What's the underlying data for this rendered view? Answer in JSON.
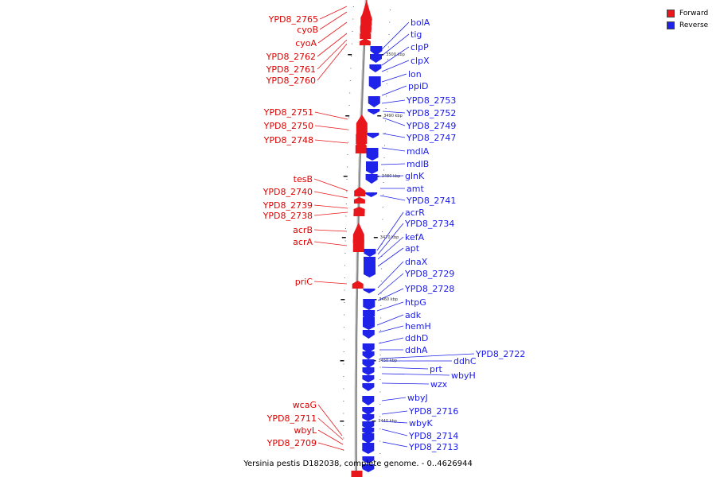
{
  "caption": "Yersinia pestis D182038, complete genome. - 0..4626944",
  "colors": {
    "forward": "#e8171b",
    "reverse": "#1f22e8",
    "backbone": "#888888"
  },
  "legend": [
    {
      "label": "Forward",
      "color": "#e8171b"
    },
    {
      "label": "Reverse",
      "color": "#1f22e8"
    }
  ],
  "ticks": [
    "3500 kbp",
    "3490 kbp",
    "3480 kbp",
    "3470 kbp",
    "3460 kbp",
    "3450 kbp",
    "3440 kbp"
  ],
  "forward_genes": [
    "YPD8_2765",
    "cyoB",
    "cyoA",
    "YPD8_2762",
    "YPD8_2761",
    "YPD8_2760",
    "YPD8_2751",
    "YPD8_2750",
    "YPD8_2748",
    "tesB",
    "YPD8_2740",
    "YPD8_2739",
    "YPD8_2738",
    "acrB",
    "acrA",
    "priC",
    "wcaG",
    "YPD8_2711",
    "wbyL",
    "YPD8_2709"
  ],
  "reverse_genes": [
    "bolA",
    "tig",
    "clpP",
    "clpX",
    "lon",
    "ppiD",
    "YPD8_2753",
    "YPD8_2752",
    "YPD8_2749",
    "YPD8_2747",
    "mdlA",
    "mdlB",
    "glnK",
    "amt",
    "YPD8_2741",
    "acrR",
    "YPD8_2734",
    "kefA",
    "apt",
    "dnaX",
    "YPD8_2729",
    "YPD8_2728",
    "htpG",
    "adk",
    "hemH",
    "ddhD",
    "ddhA",
    "YPD8_2722",
    "ddhC",
    "prt",
    "wbyH",
    "wzx",
    "wbyJ",
    "YPD8_2716",
    "wbyK",
    "YPD8_2714",
    "YPD8_2713"
  ]
}
